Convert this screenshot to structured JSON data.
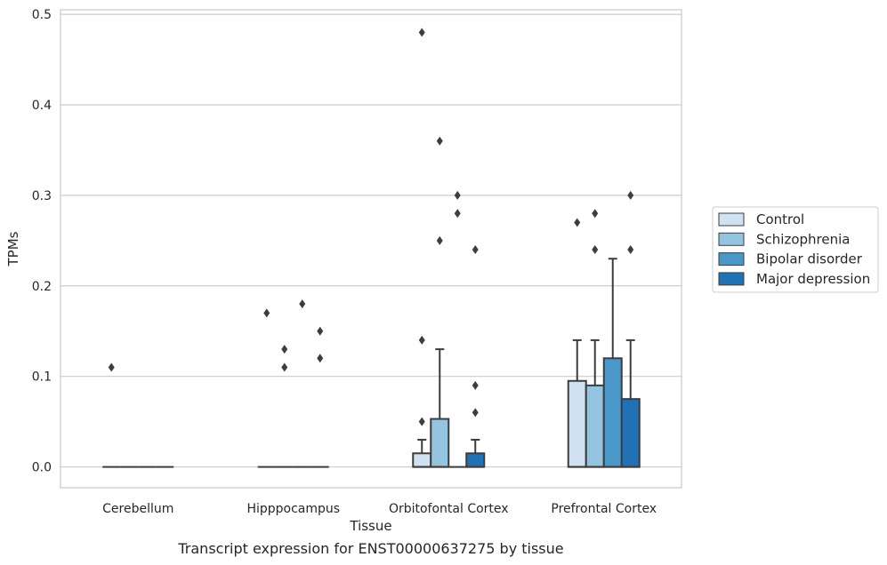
{
  "caption": "Transcript expression for ENST00000637275 by tissue",
  "chart_data": {
    "type": "box",
    "title": "",
    "xlabel": "Tissue",
    "ylabel": "TPMs",
    "ylim": [
      -0.023,
      0.505
    ],
    "yticks": [
      0.0,
      0.1,
      0.2,
      0.3,
      0.4,
      0.5
    ],
    "ytick_labels": [
      "0.0",
      "0.1",
      "0.2",
      "0.3",
      "0.4",
      "0.5"
    ],
    "grid": "horizontal",
    "legend_position": "right",
    "categories": [
      "Cerebellum",
      "Hipppocampus",
      "Orbitofontal Cortex",
      "Prefrontal Cortex"
    ],
    "series": [
      {
        "name": "Control",
        "color": "#d0e1f2",
        "boxes": [
          {
            "q1": 0,
            "median": 0,
            "q3": 0,
            "whisker_low": 0,
            "whisker_high": 0,
            "outliers": [
              0.11
            ]
          },
          {
            "q1": 0,
            "median": 0,
            "q3": 0,
            "whisker_low": 0,
            "whisker_high": 0,
            "outliers": [
              0.17
            ]
          },
          {
            "q1": 0,
            "median": 0,
            "q3": 0.015,
            "whisker_low": 0,
            "whisker_high": 0.03,
            "outliers": [
              0.05,
              0.14,
              0.48
            ]
          },
          {
            "q1": 0,
            "median": 0,
            "q3": 0.095,
            "whisker_low": 0,
            "whisker_high": 0.14,
            "outliers": [
              0.27
            ]
          }
        ]
      },
      {
        "name": "Schizophrenia",
        "color": "#94c4df",
        "boxes": [
          {
            "q1": 0,
            "median": 0,
            "q3": 0,
            "whisker_low": 0,
            "whisker_high": 0,
            "outliers": []
          },
          {
            "q1": 0,
            "median": 0,
            "q3": 0,
            "whisker_low": 0,
            "whisker_high": 0,
            "outliers": [
              0.11,
              0.13
            ]
          },
          {
            "q1": 0,
            "median": 0,
            "q3": 0.053,
            "whisker_low": 0,
            "whisker_high": 0.13,
            "outliers": [
              0.25,
              0.36
            ]
          },
          {
            "q1": 0,
            "median": 0,
            "q3": 0.09,
            "whisker_low": 0,
            "whisker_high": 0.14,
            "outliers": [
              0.24,
              0.28
            ]
          }
        ]
      },
      {
        "name": "Bipolar disorder",
        "color": "#4a98c9",
        "boxes": [
          {
            "q1": 0,
            "median": 0,
            "q3": 0,
            "whisker_low": 0,
            "whisker_high": 0,
            "outliers": []
          },
          {
            "q1": 0,
            "median": 0,
            "q3": 0,
            "whisker_low": 0,
            "whisker_high": 0,
            "outliers": [
              0.18
            ]
          },
          {
            "q1": 0,
            "median": 0,
            "q3": 0,
            "whisker_low": 0,
            "whisker_high": 0,
            "outliers": [
              0.28,
              0.3
            ]
          },
          {
            "q1": 0,
            "median": 0,
            "q3": 0.12,
            "whisker_low": 0,
            "whisker_high": 0.23,
            "outliers": []
          }
        ]
      },
      {
        "name": "Major depression",
        "color": "#2171b5",
        "boxes": [
          {
            "q1": 0,
            "median": 0,
            "q3": 0,
            "whisker_low": 0,
            "whisker_high": 0,
            "outliers": []
          },
          {
            "q1": 0,
            "median": 0,
            "q3": 0,
            "whisker_low": 0,
            "whisker_high": 0,
            "outliers": [
              0.12,
              0.15
            ]
          },
          {
            "q1": 0,
            "median": 0,
            "q3": 0.015,
            "whisker_low": 0,
            "whisker_high": 0.03,
            "outliers": [
              0.06,
              0.09,
              0.24
            ]
          },
          {
            "q1": 0,
            "median": 0,
            "q3": 0.075,
            "whisker_low": 0,
            "whisker_high": 0.14,
            "outliers": [
              0.24,
              0.3
            ]
          }
        ]
      }
    ]
  }
}
